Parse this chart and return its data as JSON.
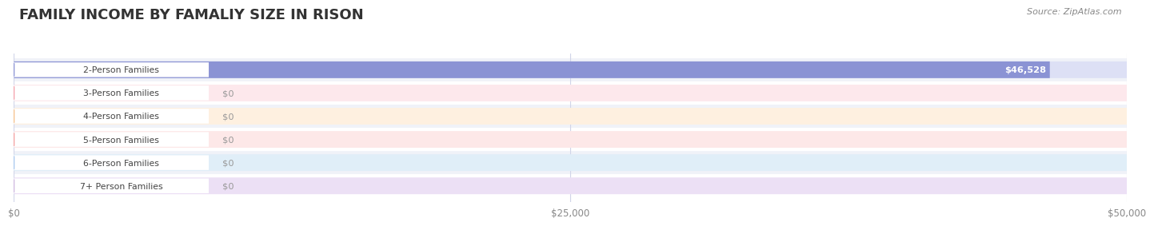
{
  "title": "FAMILY INCOME BY FAMALIY SIZE IN RISON",
  "source": "Source: ZipAtlas.com",
  "categories": [
    "2-Person Families",
    "3-Person Families",
    "4-Person Families",
    "5-Person Families",
    "6-Person Families",
    "7+ Person Families"
  ],
  "values": [
    46528,
    0,
    0,
    0,
    0,
    0
  ],
  "bar_colors": [
    "#8b93d4",
    "#f4a0aa",
    "#f5c08a",
    "#f4a0a0",
    "#a8c8ee",
    "#cfb8e0"
  ],
  "bar_bg_colors": [
    "#dde0f5",
    "#fde8ec",
    "#fef0e0",
    "#fde8e8",
    "#e0eef8",
    "#ece0f5"
  ],
  "label_bg_color": "#ffffff",
  "label_border_colors": [
    "#8b93d4",
    "#f4a0aa",
    "#f5c08a",
    "#f4a0a0",
    "#a8c8ee",
    "#cfb8e0"
  ],
  "value_labels": [
    "$46,528",
    "$0",
    "$0",
    "$0",
    "$0",
    "$0"
  ],
  "xlim": [
    0,
    50000
  ],
  "xticks": [
    0,
    25000,
    50000
  ],
  "xticklabels": [
    "$0",
    "$25,000",
    "$50,000"
  ],
  "bg_color": "#ffffff",
  "row_bg_even": "#f0f2f8",
  "row_bg_odd": "#ffffff",
  "title_fontsize": 13,
  "bar_height": 0.72,
  "grid_color": "#d0d4e8"
}
